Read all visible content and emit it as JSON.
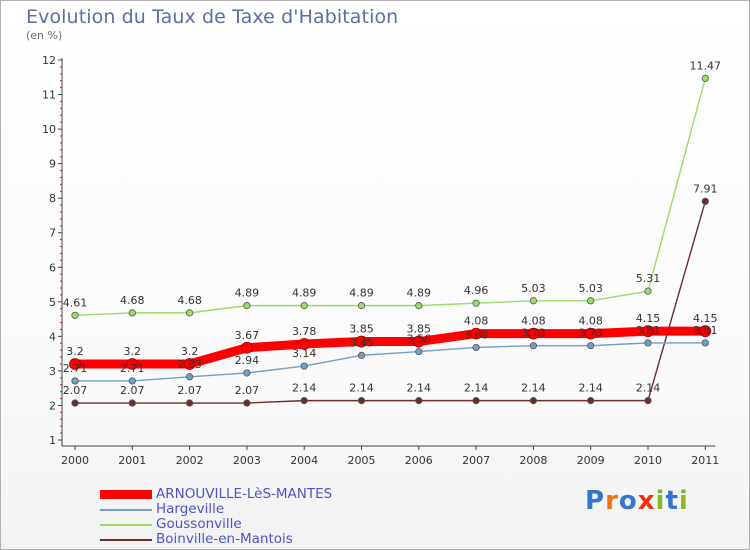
{
  "chart_data": {
    "type": "line",
    "title": "Evolution du Taux de Taxe d'Habitation",
    "subtitle": "(en %)",
    "xlabel": "",
    "ylabel": "",
    "ylim": [
      1,
      12
    ],
    "y_ticks": [
      1,
      2,
      3,
      4,
      5,
      6,
      7,
      8,
      9,
      10,
      11,
      12
    ],
    "categories": [
      "2000",
      "2001",
      "2002",
      "2003",
      "2004",
      "2005",
      "2006",
      "2007",
      "2008",
      "2009",
      "2010",
      "2011"
    ],
    "series": [
      {
        "name": "ARNOUVILLE-LèS-MANTES",
        "color": "#ff0000",
        "values": [
          3.2,
          3.2,
          3.2,
          3.67,
          3.78,
          3.85,
          3.85,
          4.08,
          4.08,
          4.08,
          4.15,
          4.15
        ],
        "labels": [
          "3.2",
          "3.2",
          "3.2",
          "3.67",
          "3.78",
          "3.85",
          "3.85",
          "4.08",
          "4.08",
          "4.08",
          "4.15",
          "4.15"
        ]
      },
      {
        "name": "Hargeville",
        "color": "#6fa0c8",
        "values": [
          2.71,
          2.71,
          2.83,
          2.94,
          3.14,
          3.45,
          3.56,
          3.68,
          3.73,
          3.73,
          3.81,
          3.81
        ],
        "labels": [
          "2.71",
          "2.71",
          "2.83",
          "2.94",
          "3.14",
          "3.45",
          "3.56",
          "3.68",
          "3.73",
          "3.73",
          "3.81",
          "3.81"
        ]
      },
      {
        "name": "Goussonville",
        "color": "#99dd66",
        "values": [
          4.61,
          4.68,
          4.68,
          4.89,
          4.89,
          4.89,
          4.89,
          4.96,
          5.03,
          5.03,
          5.31,
          11.47
        ],
        "labels": [
          "4.61",
          "4.68",
          "4.68",
          "4.89",
          "4.89",
          "4.89",
          "4.89",
          "4.96",
          "5.03",
          "5.03",
          "5.31",
          "11.47"
        ]
      },
      {
        "name": "Boinville-en-Mantois",
        "color": "#6e2c2c",
        "values": [
          2.07,
          2.07,
          2.07,
          2.07,
          2.14,
          2.14,
          2.14,
          2.14,
          2.14,
          2.14,
          2.14,
          7.91
        ],
        "labels": [
          "2.07",
          "2.07",
          "2.07",
          "2.07",
          "2.14",
          "2.14",
          "2.14",
          "2.14",
          "2.14",
          "2.14",
          "2.14",
          "7.91"
        ]
      }
    ],
    "legend_position": "bottom-left"
  },
  "logo": {
    "text": "Proxiti",
    "letters": [
      "P",
      "r",
      "o",
      "x",
      "i",
      "t",
      "i"
    ],
    "colors": [
      "#3377cc",
      "#ee7711",
      "#3377cc",
      "#ee3311",
      "#88bb22",
      "#3377cc",
      "#88bb22"
    ]
  }
}
